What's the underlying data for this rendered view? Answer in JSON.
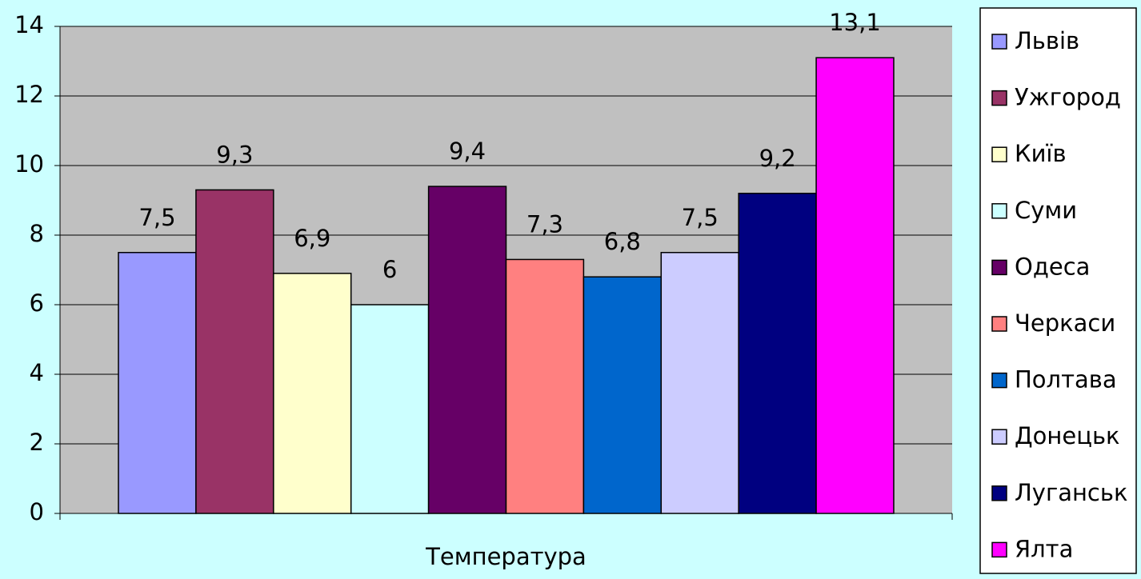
{
  "chart_data": {
    "type": "bar",
    "categories": [
      "Температура"
    ],
    "series": [
      {
        "name": "Львів",
        "color": "#9999ff",
        "values": [
          7.5
        ],
        "value_labels": [
          "7,5"
        ]
      },
      {
        "name": "Ужгород",
        "color": "#993366",
        "values": [
          9.3
        ],
        "value_labels": [
          "9,3"
        ]
      },
      {
        "name": "Київ",
        "color": "#ffffcc",
        "values": [
          6.9
        ],
        "value_labels": [
          "6,9"
        ]
      },
      {
        "name": "Суми",
        "color": "#ccffff",
        "values": [
          6
        ],
        "value_labels": [
          "6"
        ]
      },
      {
        "name": "Одеса",
        "color": "#660066",
        "values": [
          9.4
        ],
        "value_labels": [
          "9,4"
        ]
      },
      {
        "name": "Черкаси",
        "color": "#ff8080",
        "values": [
          7.3
        ],
        "value_labels": [
          "7,3"
        ]
      },
      {
        "name": "Полтава",
        "color": "#0066cc",
        "values": [
          6.8
        ],
        "value_labels": [
          "6,8"
        ]
      },
      {
        "name": "Донецьк",
        "color": "#ccccff",
        "values": [
          7.5
        ],
        "value_labels": [
          "7,5"
        ]
      },
      {
        "name": "Луганськ",
        "color": "#000080",
        "values": [
          9.2
        ],
        "value_labels": [
          "9,2"
        ]
      },
      {
        "name": "Ялта",
        "color": "#ff00ff",
        "values": [
          13.1
        ],
        "value_labels": [
          "13,1"
        ]
      }
    ],
    "ylim": [
      0,
      14
    ],
    "yticks": [
      0,
      2,
      4,
      6,
      8,
      10,
      12,
      14
    ],
    "grid": true,
    "legend": "right"
  }
}
